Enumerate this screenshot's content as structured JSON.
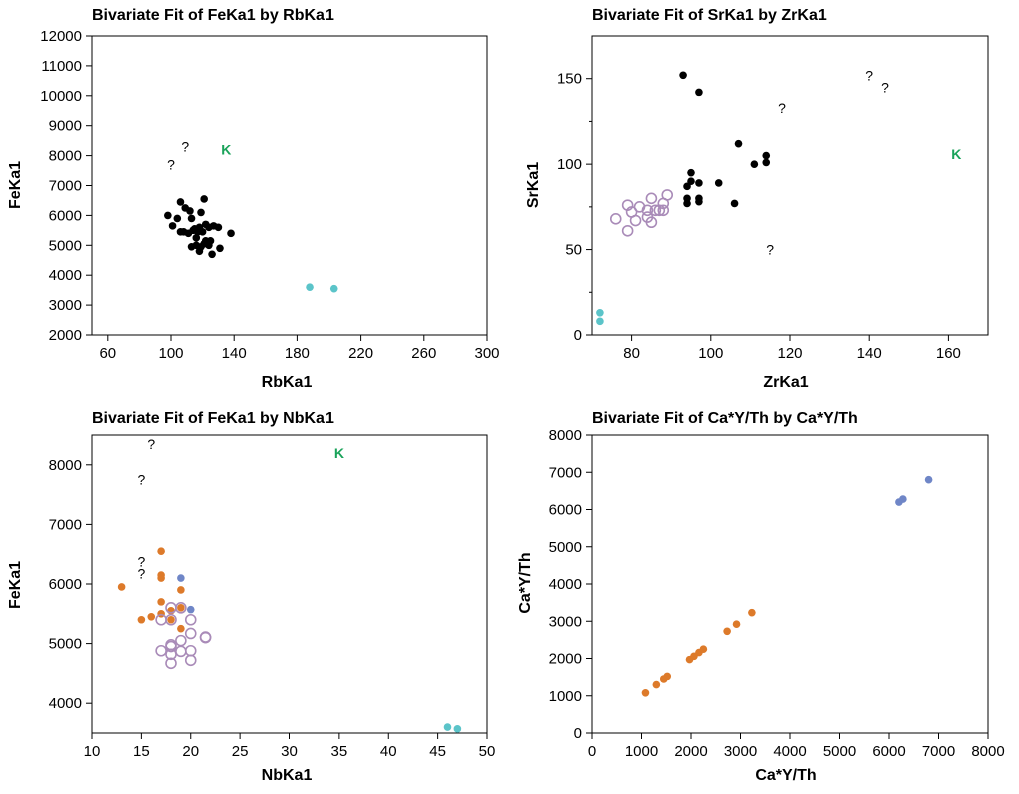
{
  "colors": {
    "black": "#000000",
    "teal": "#5bc4c9",
    "green": "#1aa35a",
    "purple": "#a98bb8",
    "orange": "#dd7a2a",
    "blue": "#6f86c7"
  },
  "chart_data": [
    {
      "type": "scatter",
      "title": "Bivariate Fit of FeKa1 by RbKa1",
      "xlabel": "RbKa1",
      "ylabel": "FeKa1",
      "xlim": [
        50,
        300
      ],
      "ylim": [
        2000,
        12000
      ],
      "xticks": [
        60,
        100,
        140,
        180,
        220,
        260,
        300
      ],
      "yticks": [
        2000,
        3000,
        4000,
        5000,
        6000,
        7000,
        8000,
        9000,
        10000,
        11000,
        12000
      ],
      "yminor": [],
      "grid": false,
      "series": [
        {
          "marker": "filled",
          "color": "black",
          "points": [
            [
              98,
              6000
            ],
            [
              101,
              5650
            ],
            [
              104,
              5900
            ],
            [
              106,
              6450
            ],
            [
              106,
              5450
            ],
            [
              108,
              5450
            ],
            [
              109,
              6250
            ],
            [
              111,
              5400
            ],
            [
              112,
              6150
            ],
            [
              113,
              5900
            ],
            [
              113,
              4950
            ],
            [
              114,
              5500
            ],
            [
              115,
              5550
            ],
            [
              116,
              5250
            ],
            [
              116,
              5000
            ],
            [
              117,
              5450
            ],
            [
              118,
              5600
            ],
            [
              118,
              4800
            ],
            [
              119,
              4950
            ],
            [
              119,
              6100
            ],
            [
              120,
              5450
            ],
            [
              121,
              6550
            ],
            [
              121,
              5050
            ],
            [
              122,
              5700
            ],
            [
              122,
              5150
            ],
            [
              124,
              5000
            ],
            [
              124,
              5600
            ],
            [
              125,
              5150
            ],
            [
              126,
              4700
            ],
            [
              127,
              5650
            ],
            [
              130,
              5600
            ],
            [
              131,
              4900
            ],
            [
              138,
              5400
            ]
          ]
        },
        {
          "marker": "filled",
          "color": "teal",
          "points": [
            [
              188,
              3600
            ],
            [
              203,
              3550
            ]
          ]
        },
        {
          "marker": "text",
          "color": "black",
          "text": "?",
          "points": [
            [
              100,
              7700
            ],
            [
              109,
              8300
            ]
          ]
        },
        {
          "marker": "text",
          "color": "green",
          "text": "K",
          "points": [
            [
              135,
              8200
            ]
          ]
        }
      ]
    },
    {
      "type": "scatter",
      "title": "Bivariate Fit of SrKa1 by ZrKa1",
      "xlabel": "ZrKa1",
      "ylabel": "SrKa1",
      "xlim": [
        70,
        170
      ],
      "ylim": [
        0,
        175
      ],
      "xticks": [
        80,
        100,
        120,
        140,
        160
      ],
      "yticks": [
        0,
        50,
        100,
        150
      ],
      "yminor": [
        25,
        75,
        125
      ],
      "grid": false,
      "series": [
        {
          "marker": "filled",
          "color": "black",
          "points": [
            [
              93,
              152
            ],
            [
              97,
              142
            ],
            [
              94,
              87
            ],
            [
              95,
              90
            ],
            [
              95,
              95
            ],
            [
              97,
              89
            ],
            [
              94,
              80
            ],
            [
              94,
              77
            ],
            [
              97,
              80
            ],
            [
              97,
              78
            ],
            [
              102,
              89
            ],
            [
              106,
              77
            ],
            [
              107,
              112
            ],
            [
              111,
              100
            ],
            [
              114,
              101
            ],
            [
              114,
              105
            ]
          ]
        },
        {
          "marker": "filled",
          "color": "teal",
          "points": [
            [
              72,
              13
            ],
            [
              72,
              8
            ]
          ]
        },
        {
          "marker": "open",
          "color": "purple",
          "points": [
            [
              76,
              68
            ],
            [
              79,
              76
            ],
            [
              79,
              61
            ],
            [
              80,
              72
            ],
            [
              81,
              67
            ],
            [
              82,
              75
            ],
            [
              84,
              69
            ],
            [
              84,
              73
            ],
            [
              85,
              66
            ],
            [
              85,
              80
            ],
            [
              86,
              73
            ],
            [
              87,
              73
            ],
            [
              88,
              77
            ],
            [
              88,
              73
            ],
            [
              89,
              82
            ]
          ]
        },
        {
          "marker": "text",
          "color": "black",
          "text": "?",
          "points": [
            [
              115,
              50
            ],
            [
              118,
              133
            ],
            [
              140,
              152
            ],
            [
              144,
              145
            ]
          ]
        },
        {
          "marker": "text",
          "color": "green",
          "text": "K",
          "points": [
            [
              162,
              106
            ]
          ]
        }
      ]
    },
    {
      "type": "scatter",
      "title": "Bivariate Fit of FeKa1 by NbKa1",
      "xlabel": "NbKa1",
      "ylabel": "FeKa1",
      "xlim": [
        10,
        50
      ],
      "ylim": [
        3500,
        8500
      ],
      "xticks": [
        10,
        15,
        20,
        25,
        30,
        35,
        40,
        45,
        50
      ],
      "yticks": [
        4000,
        5000,
        6000,
        7000,
        8000
      ],
      "yminor": [],
      "grid": false,
      "series": [
        {
          "marker": "filled",
          "color": "orange",
          "points": [
            [
              13,
              5950
            ],
            [
              15,
              5400
            ],
            [
              16,
              5450
            ],
            [
              17,
              6550
            ],
            [
              17,
              6150
            ],
            [
              17,
              6100
            ],
            [
              17,
              5700
            ],
            [
              17,
              5500
            ],
            [
              18,
              5550
            ],
            [
              18,
              5400
            ],
            [
              19,
              5900
            ],
            [
              19,
              5600
            ],
            [
              19,
              5250
            ]
          ]
        },
        {
          "marker": "filled",
          "color": "blue",
          "points": [
            [
              19,
              6100
            ],
            [
              20,
              5570
            ]
          ]
        },
        {
          "marker": "open",
          "color": "purple",
          "points": [
            [
              17,
              5400
            ],
            [
              17,
              4880
            ],
            [
              18,
              5600
            ],
            [
              18,
              5400
            ],
            [
              18,
              4980
            ],
            [
              18,
              4950
            ],
            [
              18,
              4820
            ],
            [
              18,
              4670
            ],
            [
              19,
              5600
            ],
            [
              19,
              5050
            ],
            [
              19,
              4870
            ],
            [
              20,
              5400
            ],
            [
              20,
              5170
            ],
            [
              20,
              4880
            ],
            [
              20,
              4720
            ],
            [
              21.5,
              5100
            ],
            [
              21.5,
              5110
            ]
          ]
        },
        {
          "marker": "filled",
          "color": "teal",
          "points": [
            [
              46,
              3600
            ],
            [
              47,
              3570
            ]
          ]
        },
        {
          "marker": "text",
          "color": "black",
          "text": "?",
          "points": [
            [
              16,
              8350
            ],
            [
              15,
              7750
            ],
            [
              15,
              6380
            ],
            [
              15,
              6180
            ]
          ]
        },
        {
          "marker": "text",
          "color": "green",
          "text": "K",
          "points": [
            [
              35,
              8200
            ]
          ]
        }
      ]
    },
    {
      "type": "scatter",
      "title": "Bivariate Fit of Ca*Y/Th by Ca*Y/Th",
      "xlabel": "Ca*Y/Th",
      "ylabel": "Ca*Y/Th",
      "xlim": [
        0,
        8000
      ],
      "ylim": [
        0,
        8000
      ],
      "xticks": [
        0,
        1000,
        2000,
        3000,
        4000,
        5000,
        6000,
        7000,
        8000
      ],
      "yticks": [
        0,
        1000,
        2000,
        3000,
        4000,
        5000,
        6000,
        7000,
        8000
      ],
      "yminor": [],
      "grid": false,
      "series": [
        {
          "marker": "filled",
          "color": "orange",
          "points": [
            [
              1080,
              1080
            ],
            [
              1300,
              1300
            ],
            [
              1450,
              1450
            ],
            [
              1520,
              1520
            ],
            [
              1970,
              1970
            ],
            [
              2060,
              2060
            ],
            [
              2160,
              2160
            ],
            [
              2250,
              2250
            ],
            [
              2730,
              2730
            ],
            [
              2920,
              2920
            ],
            [
              3230,
              3230
            ]
          ]
        },
        {
          "marker": "filled",
          "color": "blue",
          "points": [
            [
              6200,
              6200
            ],
            [
              6280,
              6280
            ],
            [
              6800,
              6800
            ]
          ]
        }
      ]
    }
  ]
}
